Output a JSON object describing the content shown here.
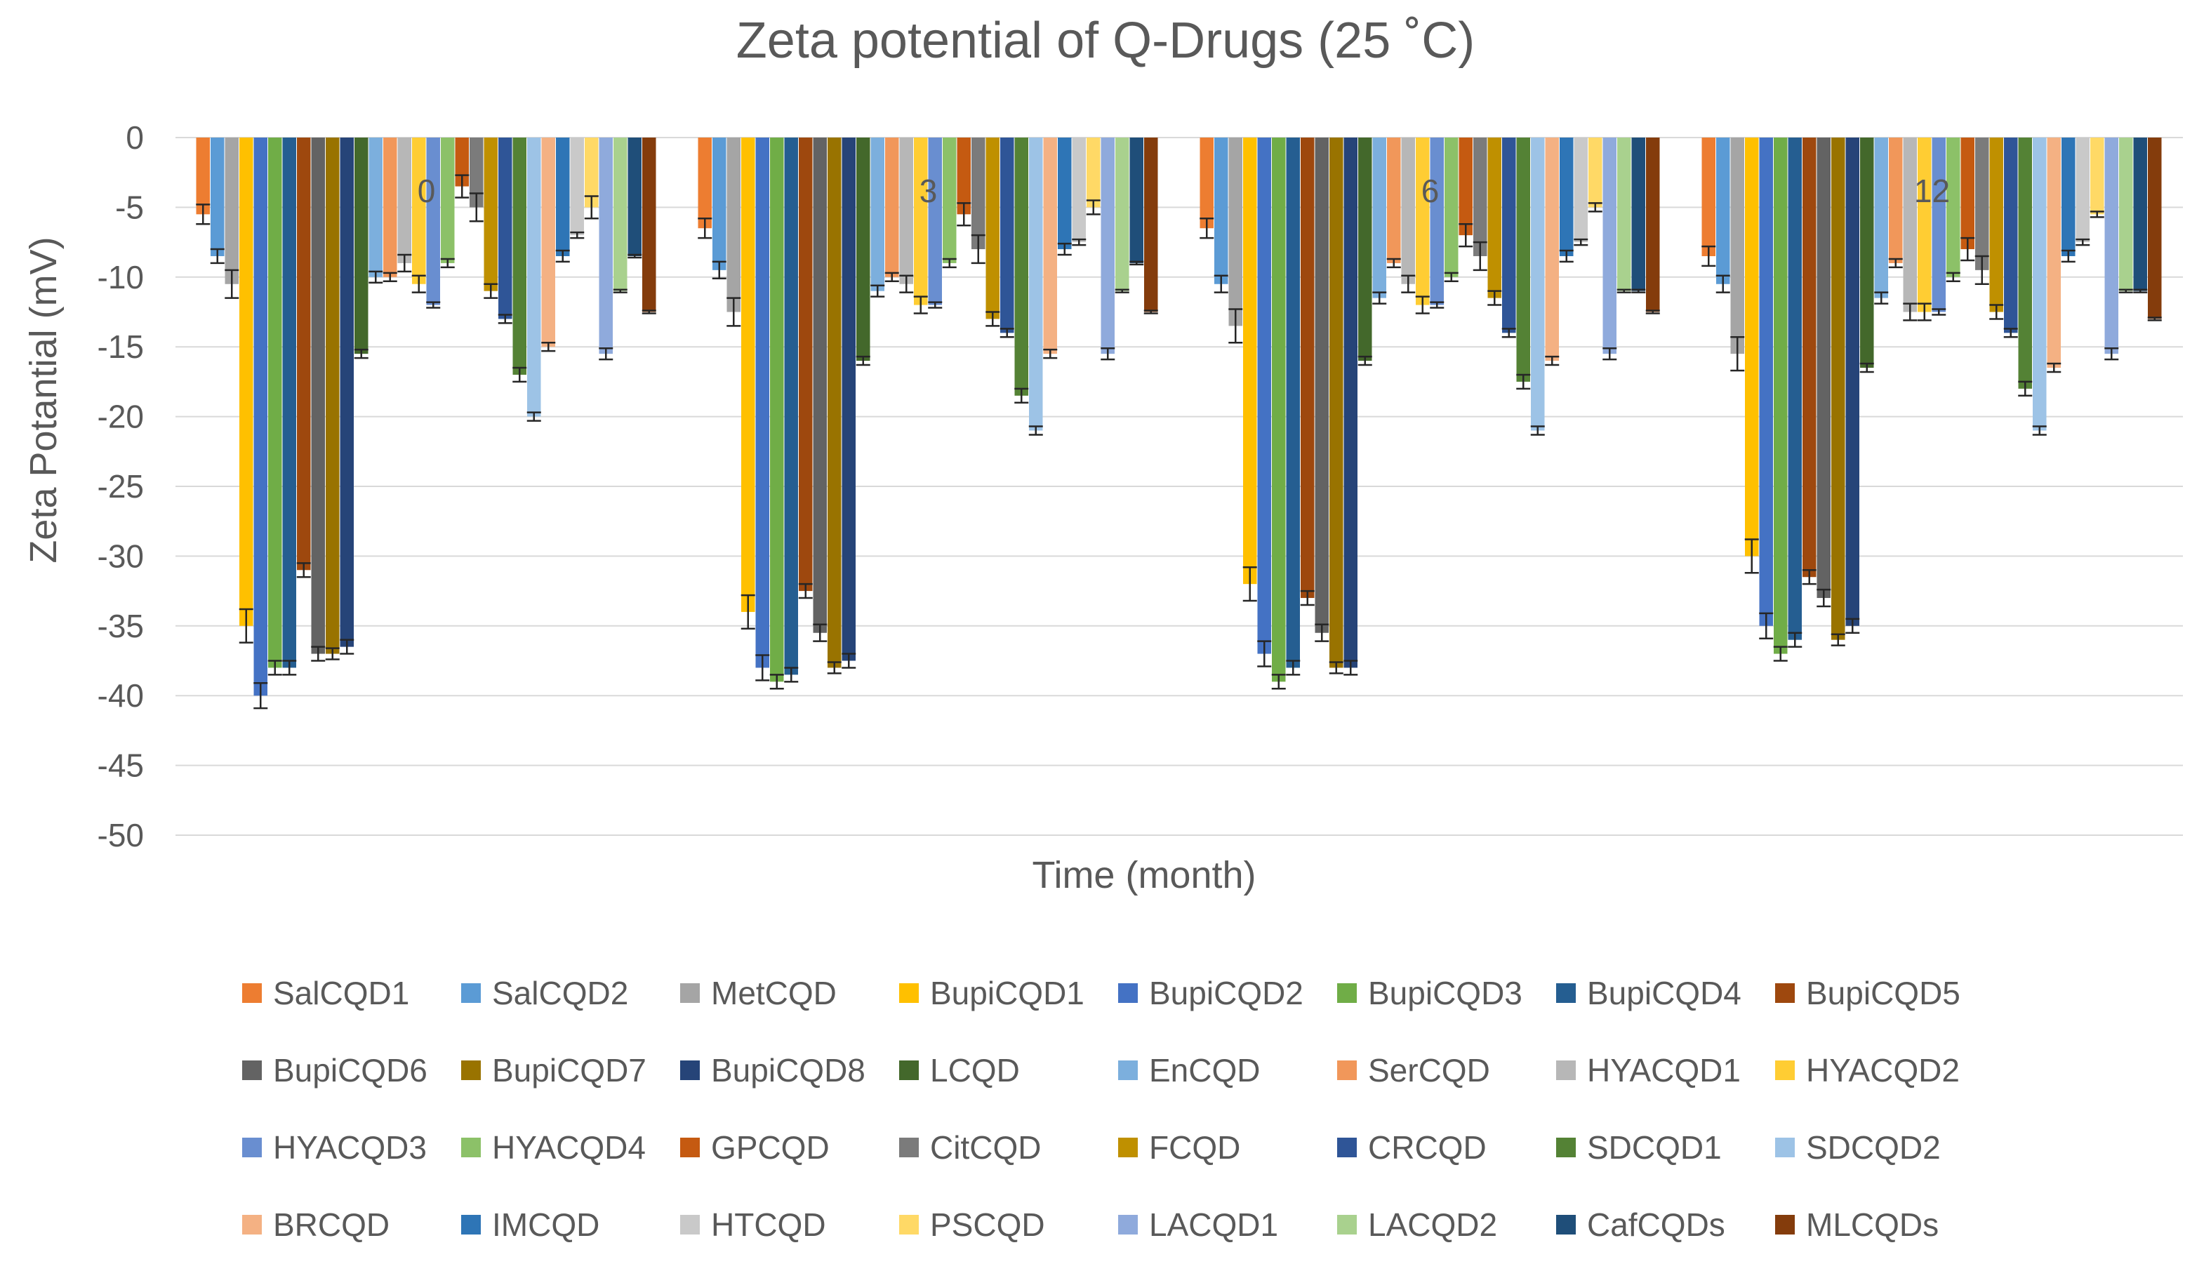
{
  "chart_data": {
    "type": "bar",
    "title": "Zeta potential of Q-Drugs (25 ˚C)",
    "xlabel": "Time (month)",
    "ylabel": "Zeta Potantial (mV)",
    "ylim": [
      -50,
      0
    ],
    "yticks": [
      0,
      -5,
      -10,
      -15,
      -20,
      -25,
      -30,
      -35,
      -40,
      -45,
      -50
    ],
    "grid": true,
    "legend_position": "bottom",
    "categories": [
      "0",
      "3",
      "6",
      "12"
    ],
    "series": [
      {
        "name": "SalCQD1",
        "color": "#ED7D31",
        "values": [
          -5.5,
          -6.5,
          -6.5,
          -8.5
        ],
        "errors": [
          0.7,
          0.7,
          0.7,
          0.7
        ]
      },
      {
        "name": "SalCQD2",
        "color": "#5B9BD5",
        "values": [
          -8.5,
          -9.5,
          -10.5,
          -10.5
        ],
        "errors": [
          0.5,
          0.6,
          0.6,
          0.6
        ]
      },
      {
        "name": "MetCQD",
        "color": "#A5A5A5",
        "values": [
          -10.5,
          -12.5,
          -13.5,
          -15.5
        ],
        "errors": [
          1.0,
          1.0,
          1.2,
          1.2
        ]
      },
      {
        "name": "BupiCQD1",
        "color": "#FFC000",
        "values": [
          -35.0,
          -34.0,
          -32.0,
          -30.0
        ],
        "errors": [
          1.2,
          1.2,
          1.2,
          1.2
        ]
      },
      {
        "name": "BupiCQD2",
        "color": "#4472C4",
        "values": [
          -40.0,
          -38.0,
          -37.0,
          -35.0
        ],
        "errors": [
          0.9,
          0.9,
          0.9,
          0.9
        ]
      },
      {
        "name": "BupiCQD3",
        "color": "#70AD47",
        "values": [
          -38.0,
          -39.0,
          -39.0,
          -37.0
        ],
        "errors": [
          0.5,
          0.5,
          0.5,
          0.5
        ]
      },
      {
        "name": "BupiCQD4",
        "color": "#255E91",
        "values": [
          -38.0,
          -38.5,
          -38.0,
          -36.0
        ],
        "errors": [
          0.5,
          0.5,
          0.5,
          0.5
        ]
      },
      {
        "name": "BupiCQD5",
        "color": "#9E480E",
        "values": [
          -31.0,
          -32.5,
          -33.0,
          -31.5
        ],
        "errors": [
          0.5,
          0.5,
          0.5,
          0.5
        ]
      },
      {
        "name": "BupiCQD6",
        "color": "#636363",
        "values": [
          -37.0,
          -35.5,
          -35.5,
          -33.0
        ],
        "errors": [
          0.5,
          0.6,
          0.6,
          0.6
        ]
      },
      {
        "name": "BupiCQD7",
        "color": "#997300",
        "values": [
          -37.0,
          -38.0,
          -38.0,
          -36.0
        ],
        "errors": [
          0.4,
          0.4,
          0.4,
          0.4
        ]
      },
      {
        "name": "BupiCQD8",
        "color": "#264478",
        "values": [
          -36.5,
          -37.5,
          -38.0,
          -35.0
        ],
        "errors": [
          0.5,
          0.5,
          0.5,
          0.5
        ]
      },
      {
        "name": "LCQD",
        "color": "#43682B",
        "values": [
          -15.5,
          -16.0,
          -16.0,
          -16.5
        ],
        "errors": [
          0.3,
          0.3,
          0.3,
          0.3
        ]
      },
      {
        "name": "EnCQD",
        "color": "#7CAFDD",
        "values": [
          -10.0,
          -11.0,
          -11.5,
          -11.5
        ],
        "errors": [
          0.4,
          0.4,
          0.4,
          0.4
        ]
      },
      {
        "name": "SerCQD",
        "color": "#F1975A",
        "values": [
          -10.0,
          -10.0,
          -9.0,
          -9.0
        ],
        "errors": [
          0.3,
          0.3,
          0.3,
          0.3
        ]
      },
      {
        "name": "HYACQD1",
        "color": "#B7B7B7",
        "values": [
          -9.0,
          -10.5,
          -10.5,
          -12.5
        ],
        "errors": [
          0.6,
          0.6,
          0.6,
          0.6
        ]
      },
      {
        "name": "HYACQD2",
        "color": "#FFCD33",
        "values": [
          -10.5,
          -12.0,
          -12.0,
          -12.5
        ],
        "errors": [
          0.6,
          0.6,
          0.6,
          0.6
        ]
      },
      {
        "name": "HYACQD3",
        "color": "#698ED0",
        "values": [
          -12.0,
          -12.0,
          -12.0,
          -12.5
        ],
        "errors": [
          0.2,
          0.2,
          0.2,
          0.2
        ]
      },
      {
        "name": "HYACQD4",
        "color": "#8CC168",
        "values": [
          -9.0,
          -9.0,
          -10.0,
          -10.0
        ],
        "errors": [
          0.3,
          0.3,
          0.3,
          0.3
        ]
      },
      {
        "name": "GPCQD",
        "color": "#C55A11",
        "values": [
          -3.5,
          -5.5,
          -7.0,
          -8.0
        ],
        "errors": [
          0.8,
          0.8,
          0.8,
          0.8
        ]
      },
      {
        "name": "CitCQD",
        "color": "#7B7B7B",
        "values": [
          -5.0,
          -8.0,
          -8.5,
          -9.5
        ],
        "errors": [
          1.0,
          1.0,
          1.0,
          1.0
        ]
      },
      {
        "name": "FCQD",
        "color": "#BF9000",
        "values": [
          -11.0,
          -13.0,
          -11.5,
          -12.5
        ],
        "errors": [
          0.5,
          0.5,
          0.5,
          0.5
        ]
      },
      {
        "name": "CRCQD",
        "color": "#2F5597",
        "values": [
          -13.0,
          -14.0,
          -14.0,
          -14.0
        ],
        "errors": [
          0.3,
          0.3,
          0.3,
          0.3
        ]
      },
      {
        "name": "SDCQD1",
        "color": "#548235",
        "values": [
          -17.0,
          -18.5,
          -17.5,
          -18.0
        ],
        "errors": [
          0.5,
          0.5,
          0.5,
          0.5
        ]
      },
      {
        "name": "SDCQD2",
        "color": "#9DC3E6",
        "values": [
          -20.0,
          -21.0,
          -21.0,
          -21.0
        ],
        "errors": [
          0.3,
          0.3,
          0.3,
          0.3
        ]
      },
      {
        "name": "BRCQD",
        "color": "#F4B183",
        "values": [
          -15.0,
          -15.5,
          -16.0,
          -16.5
        ],
        "errors": [
          0.3,
          0.3,
          0.3,
          0.3
        ]
      },
      {
        "name": "IMCQD",
        "color": "#2E75B6",
        "values": [
          -8.5,
          -8.0,
          -8.5,
          -8.5
        ],
        "errors": [
          0.4,
          0.4,
          0.4,
          0.4
        ]
      },
      {
        "name": "HTCQD",
        "color": "#C9C9C9",
        "values": [
          -7.0,
          -7.5,
          -7.5,
          -7.5
        ],
        "errors": [
          0.2,
          0.2,
          0.2,
          0.2
        ]
      },
      {
        "name": "PSCQD",
        "color": "#FFD966",
        "values": [
          -5.0,
          -5.0,
          -5.0,
          -5.5
        ],
        "errors": [
          0.8,
          0.5,
          0.3,
          0.2
        ]
      },
      {
        "name": "LACQD1",
        "color": "#8FAADC",
        "values": [
          -15.5,
          -15.5,
          -15.5,
          -15.5
        ],
        "errors": [
          0.4,
          0.4,
          0.4,
          0.4
        ]
      },
      {
        "name": "LACQD2",
        "color": "#A9D18E",
        "values": [
          -11.0,
          -11.0,
          -11.0,
          -11.0
        ],
        "errors": [
          0.1,
          0.1,
          0.1,
          0.1
        ]
      },
      {
        "name": "CafCQDs",
        "color": "#1F4E79",
        "values": [
          -8.5,
          -9.0,
          -11.0,
          -11.0
        ],
        "errors": [
          0.1,
          0.1,
          0.1,
          0.1
        ]
      },
      {
        "name": "MLCQDs",
        "color": "#843C0C",
        "values": [
          -12.5,
          -12.5,
          -12.5,
          -13.0
        ],
        "errors": [
          0.1,
          0.1,
          0.1,
          0.1
        ]
      }
    ]
  }
}
